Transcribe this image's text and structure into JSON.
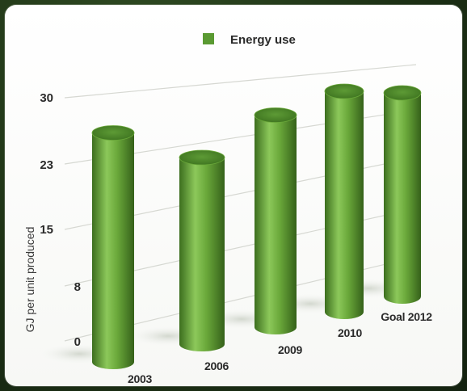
{
  "chart_data": {
    "type": "bar",
    "title": "",
    "xlabel": "",
    "ylabel": "GJ per unit produced",
    "categories": [
      "2003",
      "2006",
      "2009",
      "2010",
      "Goal 2012"
    ],
    "series": [
      {
        "name": "Energy use",
        "values": [
          27,
          22,
          25,
          26,
          24
        ]
      }
    ],
    "yticks": [
      "0",
      "8",
      "15",
      "23",
      "30"
    ],
    "ylim": [
      0,
      30
    ],
    "grid": true,
    "legend": "top-center",
    "colors": {
      "bar": "#5a9a32",
      "bar_light": "#8cc85a",
      "bar_dark": "#3c6e1e"
    }
  }
}
